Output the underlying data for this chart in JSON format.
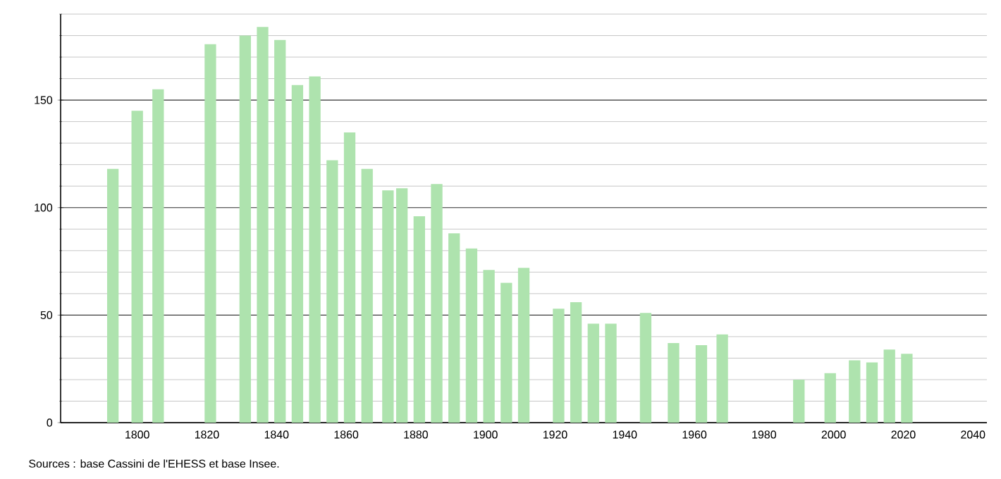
{
  "chart_data": {
    "type": "bar",
    "x": [
      1793,
      1800,
      1806,
      1821,
      1831,
      1836,
      1841,
      1846,
      1851,
      1856,
      1861,
      1866,
      1872,
      1876,
      1881,
      1886,
      1891,
      1896,
      1901,
      1906,
      1911,
      1921,
      1926,
      1931,
      1936,
      1946,
      1954,
      1962,
      1968,
      1990,
      1999,
      2006,
      2011,
      2016,
      2021
    ],
    "values": [
      118,
      145,
      155,
      176,
      180,
      184,
      178,
      157,
      161,
      122,
      135,
      118,
      108,
      109,
      96,
      111,
      88,
      81,
      71,
      65,
      72,
      53,
      56,
      46,
      46,
      51,
      37,
      36,
      41,
      20,
      23,
      29,
      28,
      34,
      32
    ],
    "color": "#aee3ae",
    "xlim": [
      1778,
      2044
    ],
    "xticks": [
      1800,
      1820,
      1840,
      1860,
      1880,
      1900,
      1920,
      1940,
      1960,
      1980,
      2000,
      2020,
      2040
    ],
    "ylim": [
      0,
      190
    ],
    "yticks": [
      0,
      50,
      100,
      150
    ],
    "grid": "y",
    "annotations": [
      "Sources : base Cassini de l'EHESS et base Insee."
    ]
  }
}
